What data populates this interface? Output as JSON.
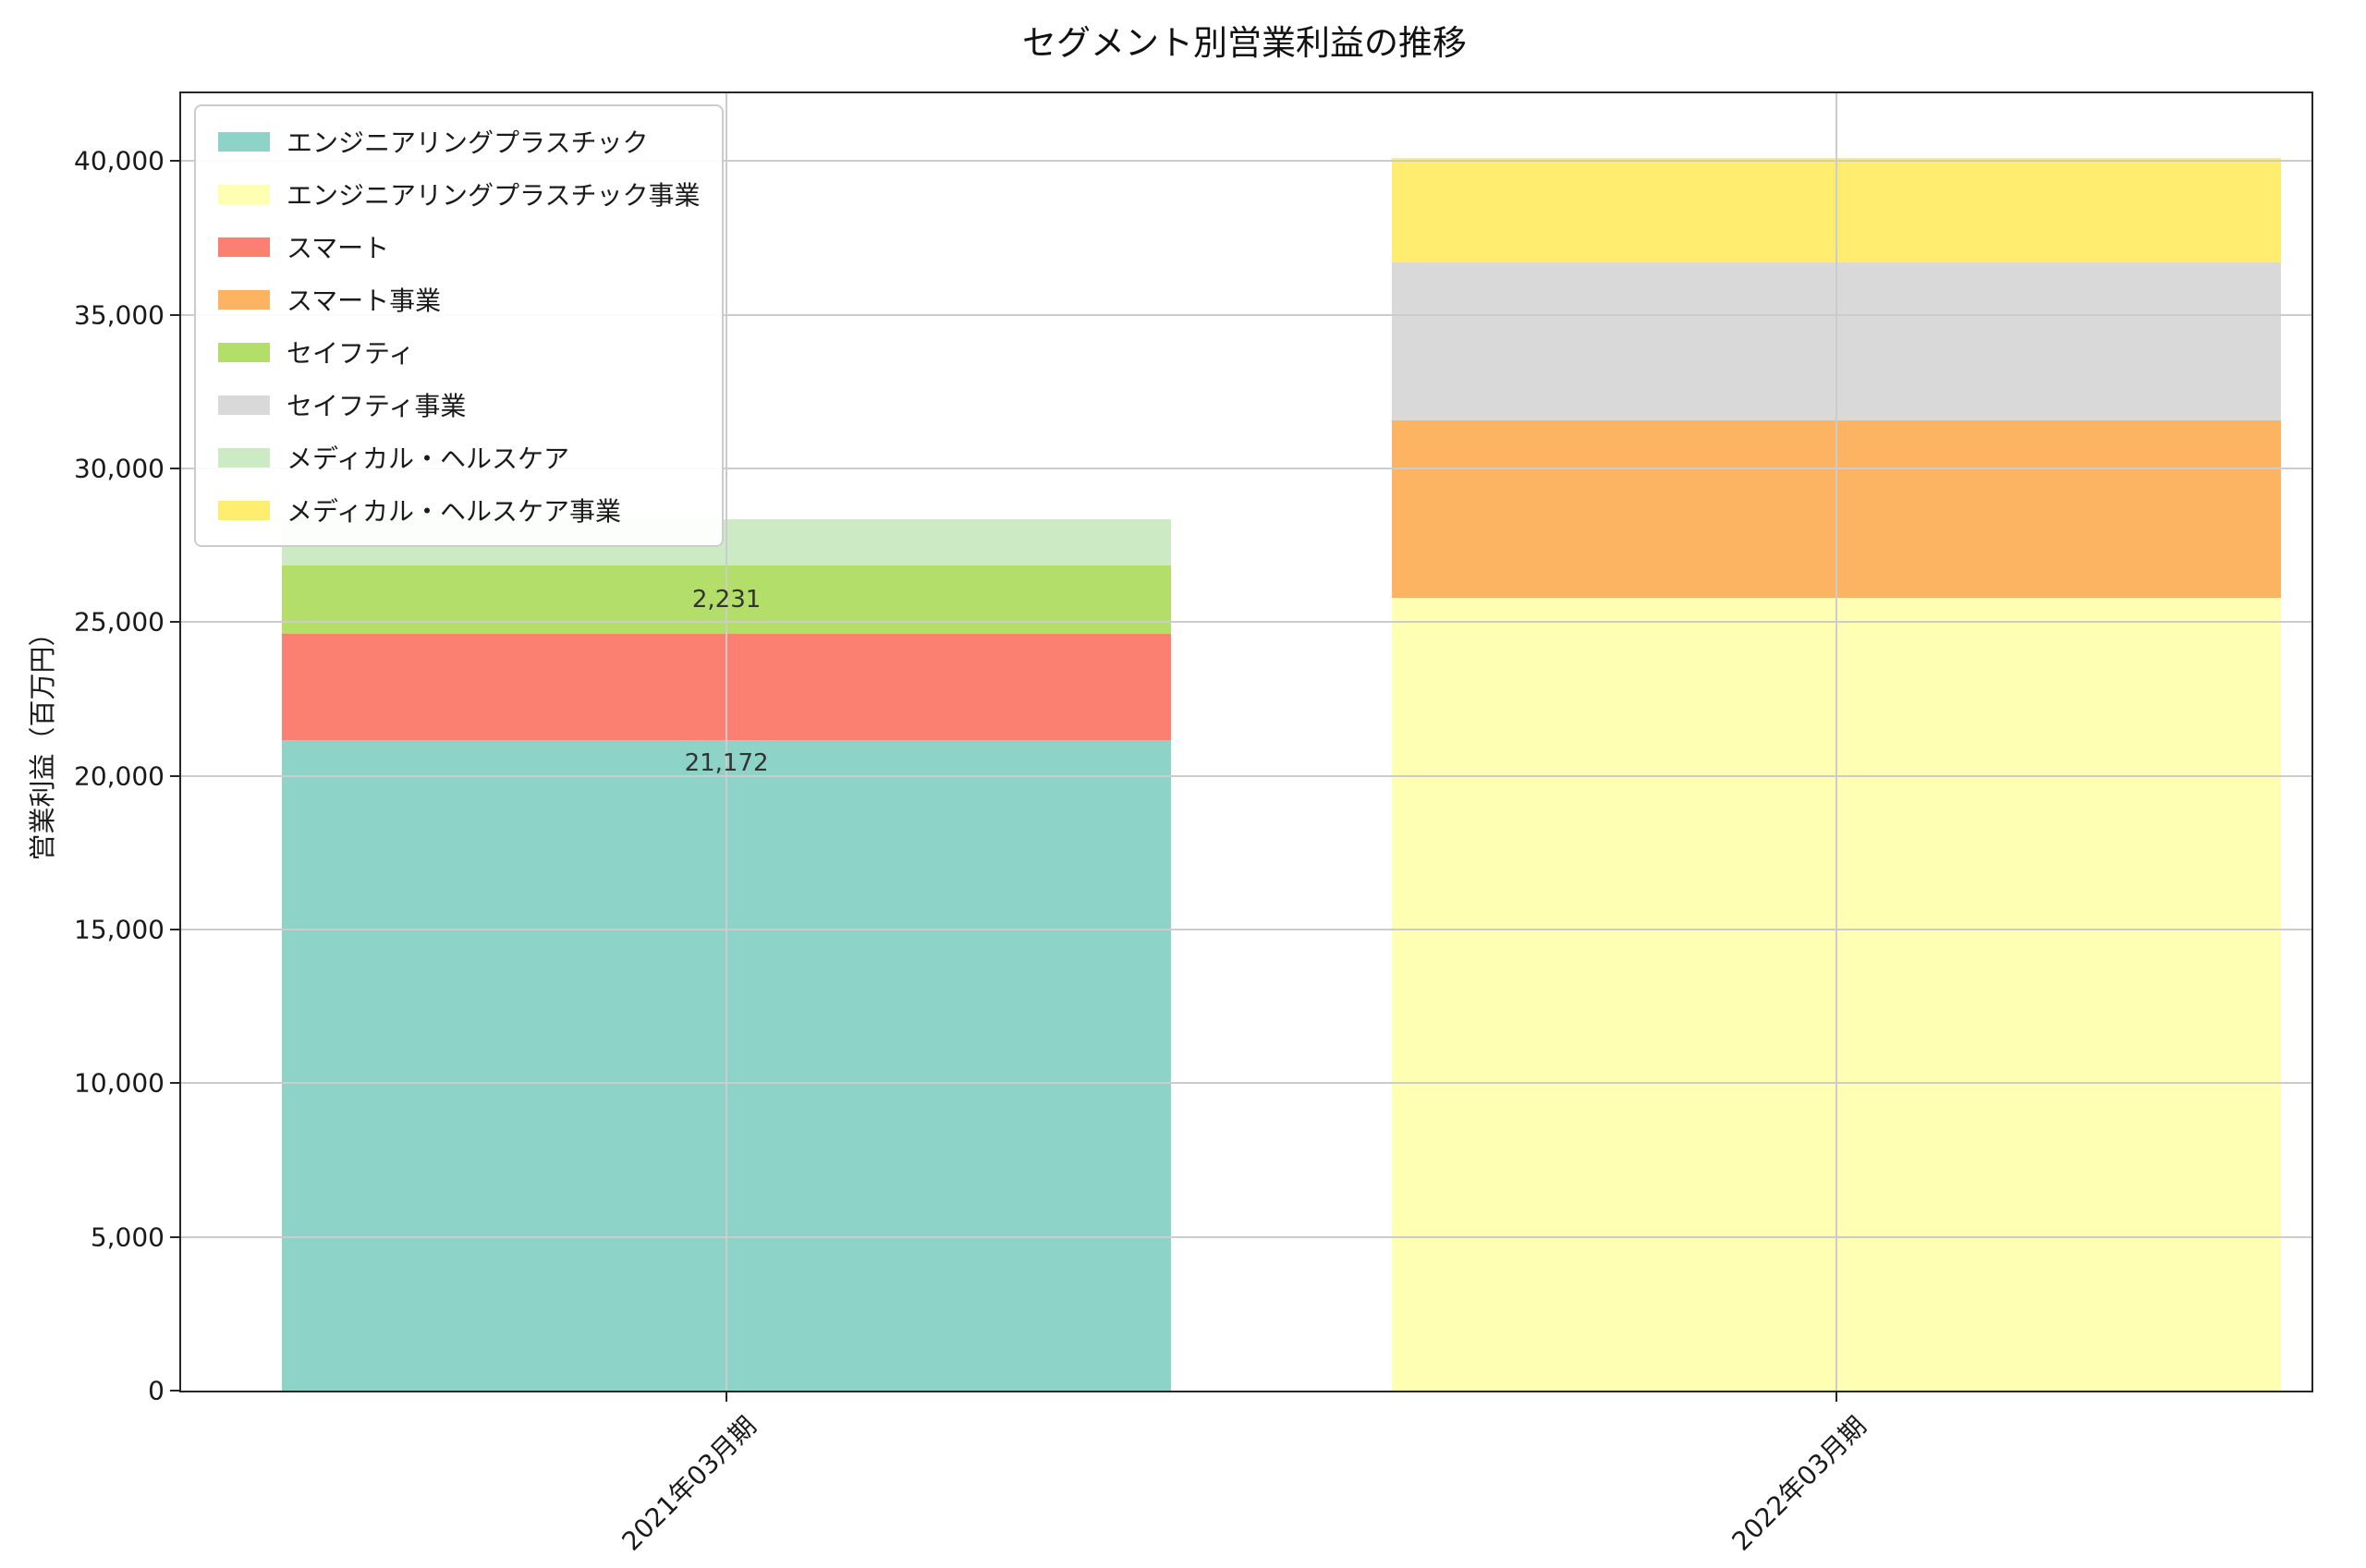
{
  "page": {
    "background": "#ffffff"
  },
  "chart_data": {
    "type": "bar",
    "stacked": true,
    "title": "セグメント別営業利益の推移",
    "xlabel": "",
    "ylabel": "営業利益（百万円）",
    "categories": [
      "2021年03月期",
      "2022年03月期"
    ],
    "series": [
      {
        "name": "エンジニアリングプラスチック",
        "color": "#8dd3c7",
        "values": [
          21172,
          0
        ]
      },
      {
        "name": "エンジニアリングプラスチック事業",
        "color": "#ffffb3",
        "values": [
          0,
          25800
        ]
      },
      {
        "name": "スマート",
        "color": "#fb8072",
        "values": [
          3450,
          0
        ]
      },
      {
        "name": "スマート事業",
        "color": "#fdb462",
        "values": [
          0,
          5750
        ]
      },
      {
        "name": "セイフティ",
        "color": "#b3de69",
        "values": [
          2231,
          0
        ]
      },
      {
        "name": "セイフティ事業",
        "color": "#d9d9d9",
        "values": [
          0,
          5150
        ]
      },
      {
        "name": "メディカル・ヘルスケア",
        "color": "#ccebc5",
        "values": [
          1500,
          0
        ]
      },
      {
        "name": "メディカル・ヘルスケア事業",
        "color": "#ffed6f",
        "values": [
          0,
          3400
        ]
      }
    ],
    "ylim": [
      0,
      42200
    ],
    "yticks": [
      0,
      5000,
      10000,
      15000,
      20000,
      25000,
      30000,
      35000,
      40000
    ],
    "ytick_labels": [
      "0",
      "5,000",
      "10,000",
      "15,000",
      "20,000",
      "25,000",
      "30,000",
      "35,000",
      "40,000"
    ],
    "grid": true,
    "grid_color": "#cccccc",
    "legend_position": "upper left",
    "annotations": [
      {
        "text": "21,172",
        "bar": 0,
        "series": 0,
        "placement": "below-top"
      },
      {
        "text": "2,231",
        "bar": 0,
        "series": 4,
        "placement": "center"
      }
    ]
  }
}
